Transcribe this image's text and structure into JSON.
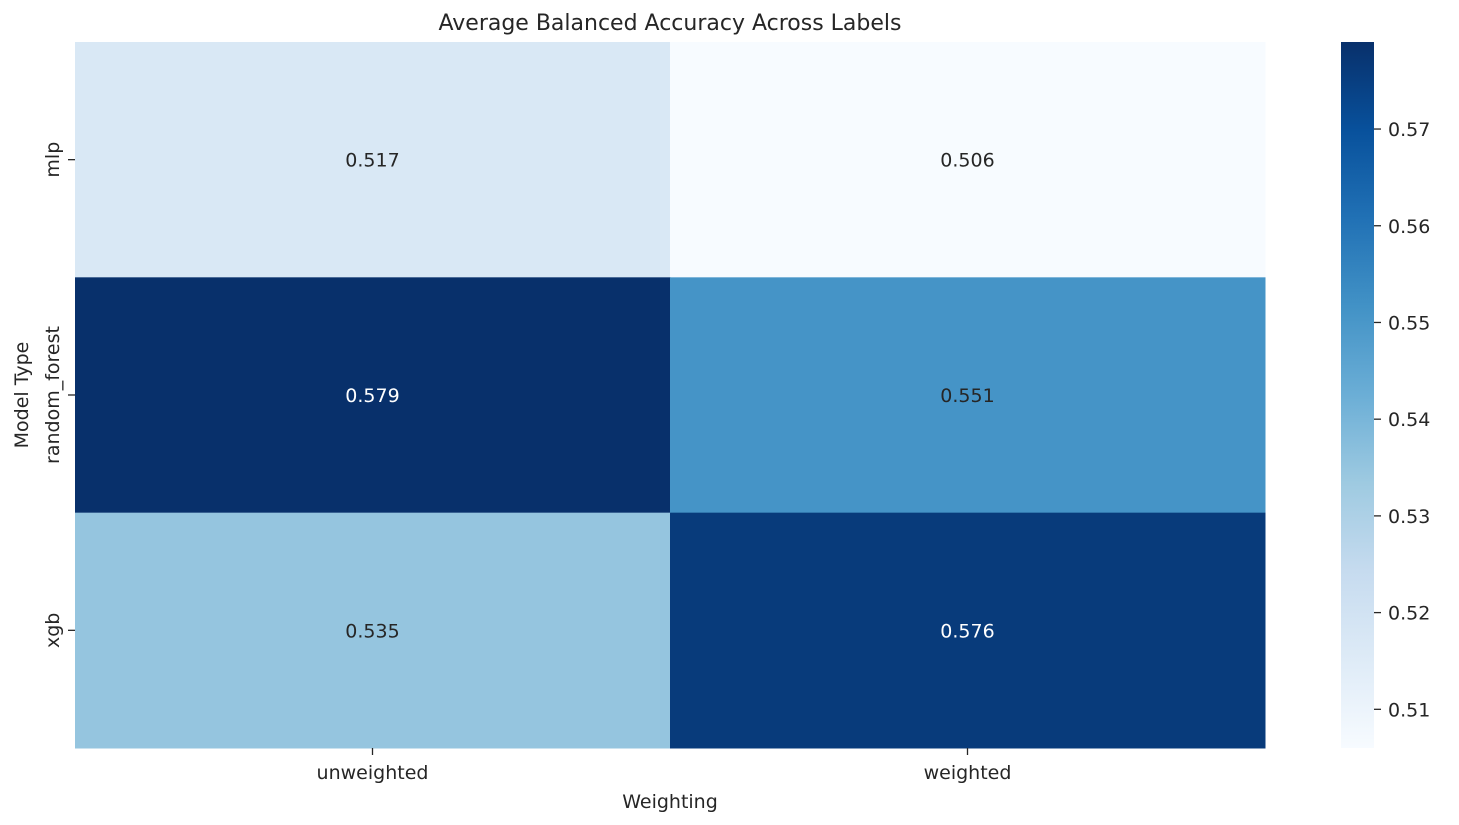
{
  "chart_data": {
    "type": "heatmap",
    "title": "Average Balanced Accuracy Across Labels",
    "xlabel": "Weighting",
    "ylabel": "Model Type",
    "x_categories": [
      "unweighted",
      "weighted"
    ],
    "y_categories": [
      "mlp",
      "random_forest",
      "xgb"
    ],
    "values": [
      [
        0.517,
        0.506
      ],
      [
        0.579,
        0.551
      ],
      [
        0.535,
        0.576
      ]
    ],
    "value_labels": [
      [
        "0.517",
        "0.506"
      ],
      [
        "0.579",
        "0.551"
      ],
      [
        "0.535",
        "0.576"
      ]
    ],
    "colormap": "Blues",
    "color_range": [
      0.506,
      0.579
    ],
    "colorbar_ticks": [
      0.51,
      0.52,
      0.53,
      0.54,
      0.55,
      0.56,
      0.57
    ],
    "colorbar_tick_labels": [
      "0.51",
      "0.52",
      "0.53",
      "0.54",
      "0.55",
      "0.56",
      "0.57"
    ],
    "colors": {
      "blues_stops": [
        "#f7fbff",
        "#deebf7",
        "#c6dbef",
        "#9ecae1",
        "#6baed6",
        "#4292c6",
        "#2171b5",
        "#08519c",
        "#08306b"
      ],
      "text_dark": "#262626",
      "text_light": "#ffffff"
    }
  }
}
